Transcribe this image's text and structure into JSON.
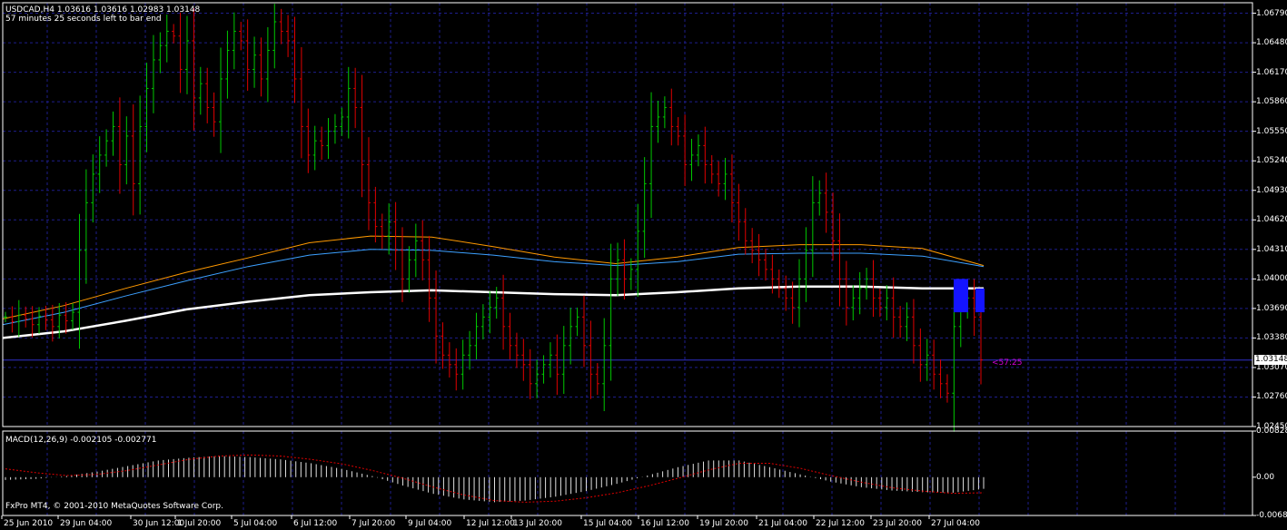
{
  "header": {
    "symbol_line": "USDCAD,H4  1.03616 1.03616 1.02983 1.03148",
    "timer_line": "57 minutes 25 seconds left to bar end"
  },
  "price_axis": {
    "labels": [
      "1.06790",
      "1.06480",
      "1.06170",
      "1.05860",
      "1.05550",
      "1.05240",
      "1.04930",
      "1.04620",
      "1.04310",
      "1.04000",
      "1.03690",
      "1.03380",
      "1.03070",
      "1.02760",
      "1.02450"
    ],
    "current_price": "1.03148"
  },
  "countdown": "<57:25",
  "macd": {
    "title": "MACD(12,26,9) -0.002105 -0.002771",
    "axis_labels": [
      "0.00828",
      "0.00",
      "-0.00688"
    ]
  },
  "time_axis": {
    "labels": [
      "25 Jun 2010",
      "29 Jun 04:00",
      "30 Jun 12:00",
      "1 Jul 20:00",
      "5 Jul 04:00",
      "6 Jul 12:00",
      "7 Jul 20:00",
      "9 Jul 04:00",
      "12 Jul 12:00",
      "13 Jul 20:00",
      "15 Jul 04:00",
      "16 Jul 12:00",
      "19 Jul 20:00",
      "21 Jul 04:00",
      "22 Jul 12:00",
      "23 Jul 20:00",
      "27 Jul 04:00"
    ]
  },
  "copyright": "FxPro MT4, © 2001-2010 MetaQuotes Software Corp.",
  "chart_data": {
    "type": "line",
    "bar_colors": {
      "up": "#00c800",
      "down": "#e00000"
    },
    "price_closes": [
      1.036,
      1.0355,
      1.0362,
      1.0358,
      1.0352,
      1.0361,
      1.0357,
      1.035,
      1.0362,
      1.0356,
      1.0365,
      1.043,
      1.048,
      1.051,
      1.053,
      1.0545,
      1.056,
      1.052,
      1.055,
      1.05,
      1.056,
      1.06,
      1.063,
      1.0645,
      1.066,
      1.0655,
      1.062,
      1.065,
      1.059,
      1.0605,
      1.058,
      1.0565,
      1.061,
      1.064,
      1.066,
      1.065,
      1.062,
      1.0635,
      1.061,
      1.064,
      1.067,
      1.066,
      1.065,
      1.061,
      1.056,
      1.053,
      1.0545,
      1.054,
      1.0555,
      1.056,
      1.057,
      1.06,
      1.058,
      1.052,
      1.048,
      1.0455,
      1.0445,
      1.046,
      1.043,
      1.04,
      1.042,
      1.044,
      1.042,
      1.038,
      1.034,
      1.032,
      1.031,
      1.03,
      1.032,
      1.033,
      1.035,
      1.036,
      1.037,
      1.038,
      1.035,
      1.033,
      1.032,
      1.031,
      1.029,
      1.03,
      1.031,
      1.032,
      1.03,
      1.033,
      1.035,
      1.036,
      1.033,
      1.03,
      1.029,
      1.033,
      1.04,
      1.042,
      1.04,
      1.041,
      1.045,
      1.05,
      1.056,
      1.057,
      1.058,
      1.056,
      1.055,
      1.052,
      1.053,
      1.054,
      1.052,
      1.051,
      1.05,
      1.051,
      1.048,
      1.046,
      1.044,
      1.043,
      1.042,
      1.041,
      1.04,
      1.039,
      1.038,
      1.037,
      1.04,
      1.043,
      1.048,
      1.049,
      1.047,
      1.044,
      1.04,
      1.037,
      1.038,
      1.039,
      1.04,
      1.038,
      1.037,
      1.038,
      1.036,
      1.035,
      1.036,
      1.033,
      1.031,
      1.032,
      1.03,
      1.029,
      1.028,
      1.035,
      1.037,
      1.038,
      1.036,
      1.0315
    ],
    "series": [
      {
        "name": "",
        "color": "#ffffff",
        "values": [
          1.0338,
          1.0345,
          1.0356,
          1.0368,
          1.0376,
          1.0383,
          1.0386,
          1.0388,
          1.0386,
          1.0384,
          1.0383,
          1.0386,
          1.039,
          1.0392,
          1.0392,
          1.039,
          1.039
        ]
      },
      {
        "name": "",
        "color": "#3ca0ff",
        "values": [
          1.0352,
          1.0365,
          1.0382,
          1.0398,
          1.0413,
          1.0425,
          1.0431,
          1.043,
          1.0425,
          1.0418,
          1.0414,
          1.0418,
          1.0426,
          1.0427,
          1.0427,
          1.0424,
          1.0413
        ]
      },
      {
        "name": "",
        "color": "#ff9900",
        "values": [
          1.0358,
          1.0372,
          1.039,
          1.0407,
          1.0422,
          1.0438,
          1.0445,
          1.0444,
          1.0434,
          1.0423,
          1.0416,
          1.0423,
          1.0433,
          1.0436,
          1.0436,
          1.0432,
          1.0414
        ]
      }
    ],
    "macd_histogram": [
      -0.0005,
      -0.0003,
      0.0002,
      0.001,
      0.002,
      0.003,
      0.0035,
      0.0038,
      0.0036,
      0.0032,
      0.0025,
      0.0015,
      0.0002,
      -0.0015,
      -0.003,
      -0.004,
      -0.0045,
      -0.0042,
      -0.0035,
      -0.0025,
      -0.0012,
      0.0003,
      0.0018,
      0.003,
      0.003,
      0.0018,
      0.0005,
      -0.0008,
      -0.0018,
      -0.0024,
      -0.0027,
      -0.0028,
      -0.0021
    ],
    "macd_signal": [
      0.0015,
      0.0008,
      0.0003,
      0.0005,
      0.0012,
      0.0022,
      0.0032,
      0.0038,
      0.004,
      0.0038,
      0.0032,
      0.0024,
      0.0012,
      -0.0002,
      -0.0018,
      -0.0032,
      -0.0042,
      -0.0045,
      -0.0043,
      -0.0037,
      -0.0028,
      -0.0016,
      -0.0002,
      0.0013,
      0.0025,
      0.0025,
      0.0016,
      0.0003,
      -0.0009,
      -0.0019,
      -0.0025,
      -0.0029,
      -0.0028
    ],
    "ylim": [
      1.0245,
      1.069
    ],
    "macd_ylim": [
      -0.00688,
      0.00828
    ]
  }
}
